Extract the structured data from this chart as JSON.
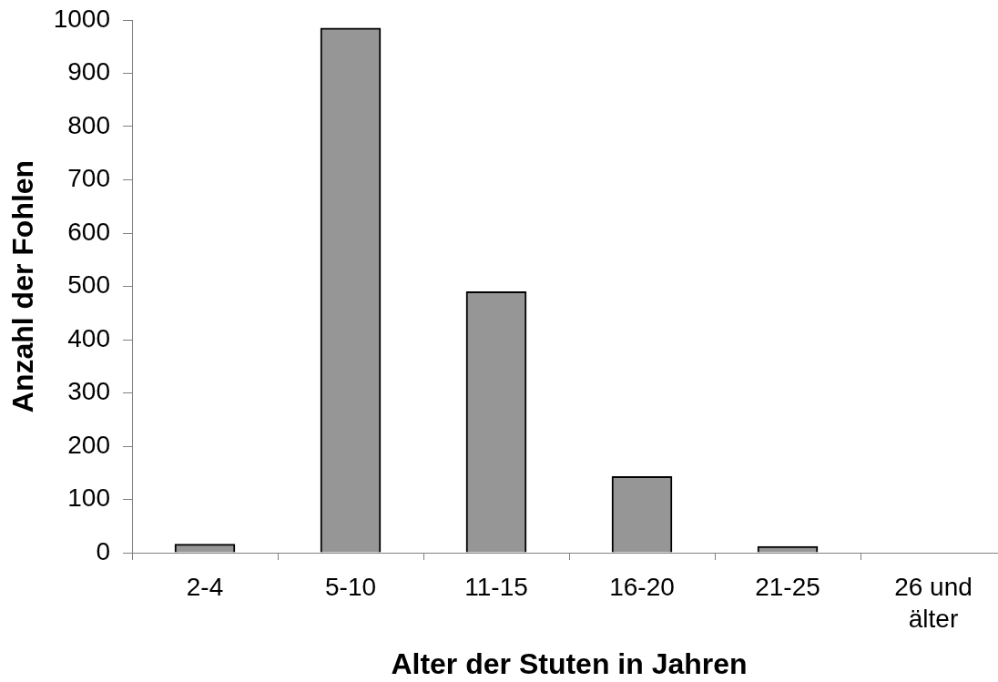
{
  "chart_data": {
    "type": "bar",
    "xlabel": "Alter der Stuten in Jahren",
    "ylabel": "Anzahl der Fohlen",
    "categories": [
      "2-4",
      "5-10",
      "11-15",
      "16-20",
      "21-25",
      "26 und älter"
    ],
    "values": [
      16,
      985,
      490,
      143,
      12,
      0
    ],
    "color": "#969696",
    "ylim": [
      0,
      1000
    ],
    "yticks": [
      0,
      100,
      200,
      300,
      400,
      500,
      600,
      700,
      800,
      900,
      1000
    ]
  }
}
